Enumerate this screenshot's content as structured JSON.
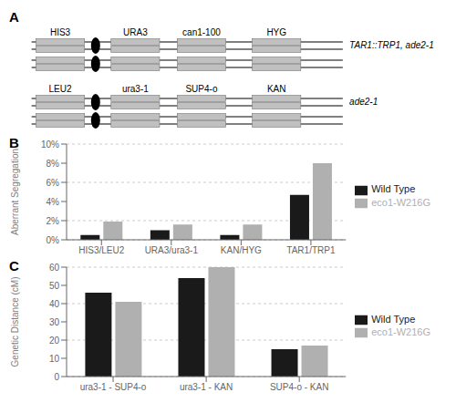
{
  "chart_data": [
    {
      "type": "schematic",
      "title": "A",
      "annotations": [
        {
          "labels": [
            "HIS3",
            "URA3",
            "can1-100",
            "HYG"
          ],
          "text": "TAR1::TRP1, ade2-1"
        },
        {
          "labels": [
            "LEU2",
            "ura3-1",
            "SUP4-o",
            "KAN"
          ],
          "text": "ade2-1"
        }
      ]
    },
    {
      "type": "bar",
      "title": "B",
      "categories": [
        "HIS3/LEU2",
        "URA3/ura3-1",
        "KAN/HYG",
        "TAR1/TRP1"
      ],
      "series": [
        {
          "name": "Wild Type",
          "color": "#1a1a1a",
          "values": [
            0.5,
            1.0,
            0.5,
            4.7
          ]
        },
        {
          "name": "eco1-W216G",
          "color": "#b0b0b0",
          "values": [
            1.9,
            1.6,
            1.6,
            8.0
          ]
        }
      ],
      "ylabel": "Aberrant Segregation",
      "ylim": [
        0,
        10
      ],
      "yticks": [
        {
          "value": 0,
          "label": "0%"
        },
        {
          "value": 2,
          "label": "2%"
        },
        {
          "value": 4,
          "label": "4%"
        },
        {
          "value": 6,
          "label": "6%"
        },
        {
          "value": 8,
          "label": "8%"
        },
        {
          "value": 10,
          "label": "10%"
        }
      ],
      "grid": true,
      "legend": "right"
    },
    {
      "type": "bar",
      "title": "C",
      "categories": [
        "ura3-1 - SUP4-o",
        "ura3-1 - KAN",
        "SUP4-o - KAN"
      ],
      "series": [
        {
          "name": "Wild Type",
          "color": "#1a1a1a",
          "values": [
            46.0,
            54.0,
            15.0
          ]
        },
        {
          "name": "eco1-W216G",
          "color": "#b0b0b0",
          "values": [
            41.0,
            60.0,
            17.0
          ]
        }
      ],
      "ylabel": "Genetic Distance (cM)",
      "ylim": [
        0,
        60
      ],
      "yticks": [
        0,
        10,
        20,
        30,
        40,
        50,
        60
      ],
      "grid": true,
      "legend": "right"
    }
  ]
}
